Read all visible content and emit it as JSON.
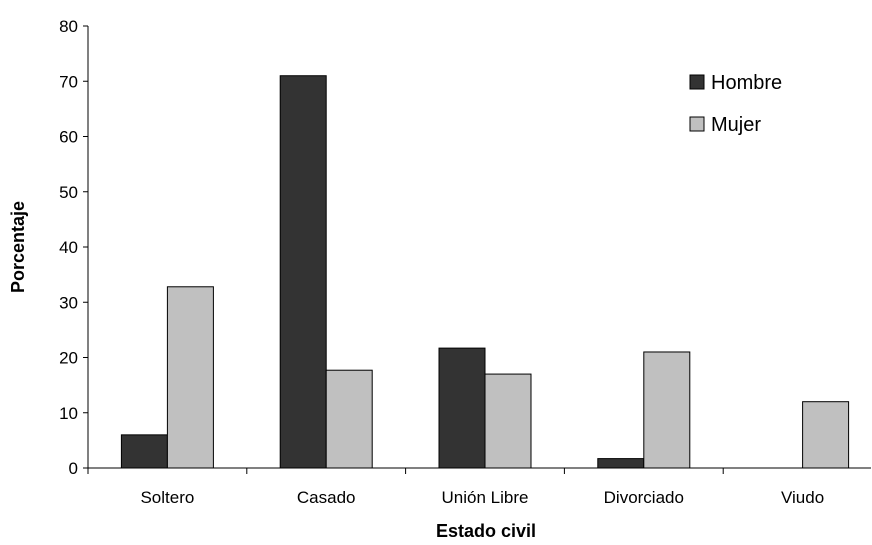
{
  "chart_data": {
    "type": "bar",
    "title": "",
    "xlabel": "Estado civil",
    "ylabel": "Porcentaje",
    "categories": [
      "Soltero",
      "Casado",
      "Unión Libre",
      "Divorciado",
      "Viudo"
    ],
    "series": [
      {
        "name": "Hombre",
        "color": "#333333",
        "values": [
          6,
          71,
          21.7,
          1.7,
          0
        ]
      },
      {
        "name": "Mujer",
        "color": "#c0c0c0",
        "values": [
          32.8,
          17.7,
          17,
          21,
          12
        ]
      }
    ],
    "ylim": [
      0,
      80
    ],
    "yticks": [
      "0",
      "10",
      "20",
      "30",
      "40",
      "50",
      "60",
      "70",
      "80"
    ],
    "grid": false,
    "legend_position": "top-right"
  }
}
